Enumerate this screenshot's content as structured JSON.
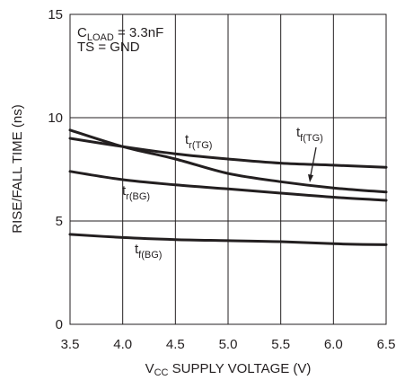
{
  "chart_data": {
    "type": "line",
    "xlabel_main": "V",
    "xlabel_sub": "CC",
    "xlabel_rest": " SUPPLY VOLTAGE (V)",
    "ylabel": "RISE/FALL TIME (ns)",
    "xlim": [
      3.5,
      6.5
    ],
    "ylim": [
      0,
      15
    ],
    "x_ticks": [
      "3.5",
      "4.0",
      "4.5",
      "5.0",
      "5.5",
      "6.0",
      "6.5"
    ],
    "y_ticks": [
      "0",
      "5",
      "10",
      "15"
    ],
    "grid": true,
    "conditions": {
      "line1_main": "C",
      "line1_sub": "LOAD",
      "line1_rest": " = 3.3nF",
      "line2": "TS = GND"
    },
    "series": [
      {
        "name_main": "t",
        "name_sub": "r(TG)",
        "x": [
          3.5,
          4.0,
          4.5,
          5.0,
          5.5,
          6.0,
          6.5
        ],
        "y": [
          9.0,
          8.6,
          8.25,
          8.0,
          7.8,
          7.7,
          7.6
        ]
      },
      {
        "name_main": "t",
        "name_sub": "f(TG)",
        "x": [
          3.5,
          4.0,
          4.5,
          5.0,
          5.5,
          6.0,
          6.5
        ],
        "y": [
          9.4,
          8.6,
          8.0,
          7.3,
          6.9,
          6.6,
          6.4
        ]
      },
      {
        "name_main": "t",
        "name_sub": "r(BG)",
        "x": [
          3.5,
          4.0,
          4.5,
          5.0,
          5.5,
          6.0,
          6.5
        ],
        "y": [
          7.4,
          7.0,
          6.75,
          6.55,
          6.35,
          6.15,
          6.0
        ]
      },
      {
        "name_main": "t",
        "name_sub": "f(BG)",
        "x": [
          3.5,
          4.0,
          4.5,
          5.0,
          5.5,
          6.0,
          6.5
        ],
        "y": [
          4.35,
          4.2,
          4.1,
          4.05,
          4.0,
          3.9,
          3.85
        ]
      }
    ]
  }
}
